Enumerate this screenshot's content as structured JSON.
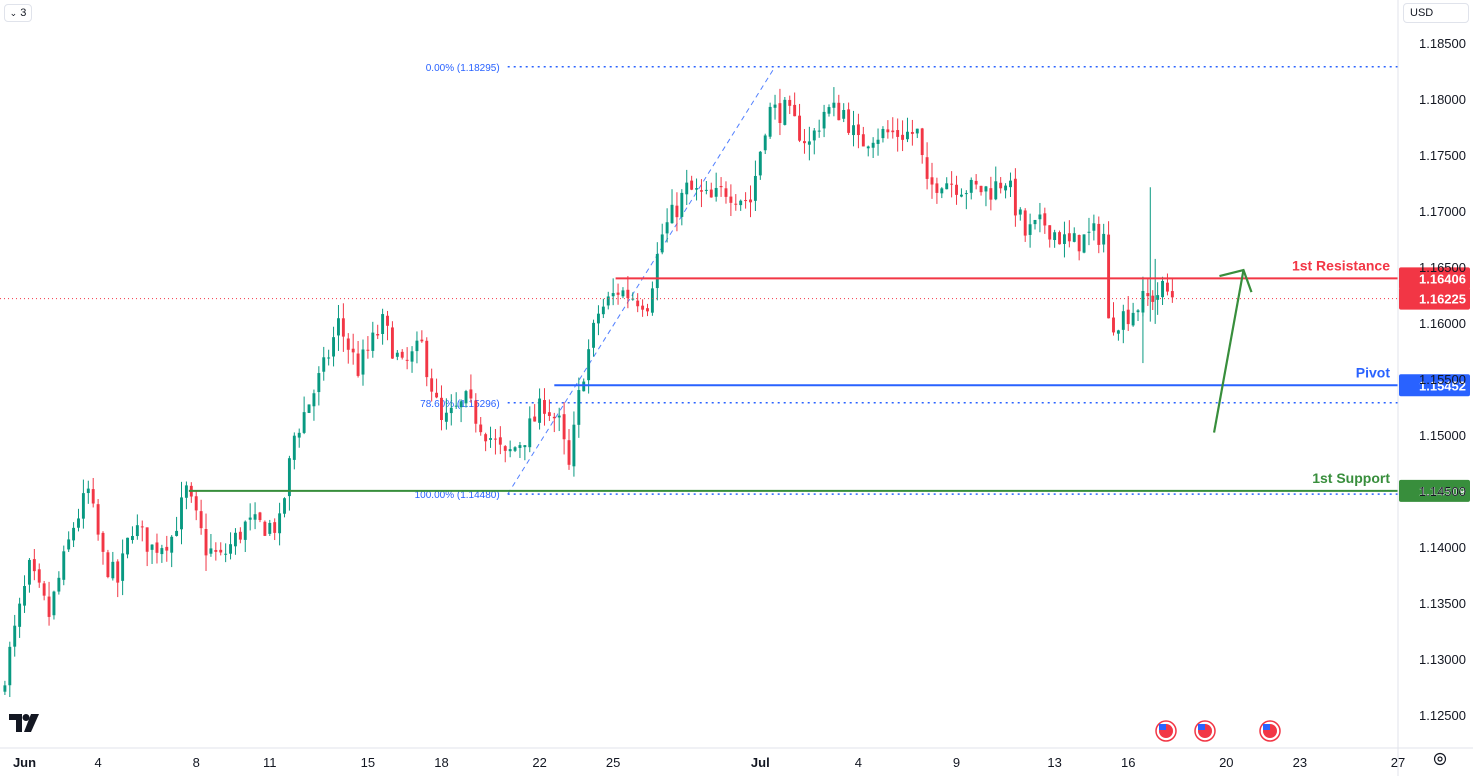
{
  "toolbar": {
    "interval_value": "3",
    "currency_label": "USD"
  },
  "colors": {
    "up": "#089981",
    "down": "#f23645",
    "resistance": "#f23645",
    "pivot": "#2962ff",
    "support": "#388e3c",
    "fib": "#2962ff",
    "arrow": "#388e3c",
    "axis_text": "#131722",
    "grid": "#f0f3fa"
  },
  "chart_data": {
    "type": "candlestick",
    "title": "",
    "y_range": [
      1.1225,
      1.1865
    ],
    "y_ticks": [
      1.185,
      1.18,
      1.175,
      1.17,
      1.165,
      1.16,
      1.155,
      1.15,
      1.145,
      1.14,
      1.135,
      1.13,
      1.125
    ],
    "y_tick_labels": [
      "1.18500",
      "1.18000",
      "1.17500",
      "1.17000",
      "1.16500",
      "1.16000",
      "1.15500",
      "1.15000",
      "1.14500",
      "1.14000",
      "1.13500",
      "1.13000",
      "1.12500"
    ],
    "x_range_days": [
      -1,
      56
    ],
    "x_ticks": [
      {
        "day": 0,
        "label": "Jun"
      },
      {
        "day": 3,
        "label": "4"
      },
      {
        "day": 7,
        "label": "8"
      },
      {
        "day": 10,
        "label": "11"
      },
      {
        "day": 14,
        "label": "15"
      },
      {
        "day": 17,
        "label": "18"
      },
      {
        "day": 21,
        "label": "22"
      },
      {
        "day": 24,
        "label": "25"
      },
      {
        "day": 30,
        "label": "Jul"
      },
      {
        "day": 34,
        "label": "4"
      },
      {
        "day": 38,
        "label": "9"
      },
      {
        "day": 42,
        "label": "13"
      },
      {
        "day": 45,
        "label": "16"
      },
      {
        "day": 49,
        "label": "20"
      },
      {
        "day": 52,
        "label": "23"
      },
      {
        "day": 56,
        "label": "27"
      }
    ],
    "levels": {
      "resistance": {
        "label": "1st Resistance",
        "value": 1.16406,
        "value_text": "1.16406",
        "start_day": 24.1
      },
      "pivot": {
        "label": "Pivot",
        "value": 1.15452,
        "value_text": "1.15452",
        "start_day": 21.6
      },
      "support": {
        "label": "1st Support",
        "value": 1.14509,
        "value_text": "1.14509",
        "start_day": 6.7
      },
      "current_price": {
        "value": 1.16225,
        "value_text": "1.16225"
      }
    },
    "fibonacci": [
      {
        "label": "0.00% (1.18295)",
        "value": 1.18295,
        "start_day": 19.7
      },
      {
        "label": "78.60% (1.15296)",
        "value": 1.15296,
        "start_day": 19.7
      },
      {
        "label": "100.00% (1.14480)",
        "value": 1.1448,
        "start_day": 19.7
      }
    ],
    "fib_trend_line": {
      "from_day": 19.7,
      "from_value": 1.1448,
      "to_day": 30.6,
      "to_value": 1.18295
    },
    "projection_arrow": {
      "from_day": 48.5,
      "from_value": 1.1503,
      "to_day": 49.7,
      "to_value": 1.1648
    },
    "anchors": [
      [
        -1,
        1.127
      ],
      [
        0.2,
        1.138
      ],
      [
        1,
        1.134
      ],
      [
        2,
        1.142
      ],
      [
        2.6,
        1.145
      ],
      [
        3.2,
        1.139
      ],
      [
        3.8,
        1.137
      ],
      [
        4.4,
        1.142
      ],
      [
        5.2,
        1.14
      ],
      [
        6,
        1.141
      ],
      [
        6.6,
        1.145
      ],
      [
        7.4,
        1.14
      ],
      [
        8,
        1.139
      ],
      [
        9,
        1.142
      ],
      [
        9.8,
        1.142
      ],
      [
        10.4,
        1.142
      ],
      [
        11,
        1.15
      ],
      [
        12.2,
        1.156
      ],
      [
        12.8,
        1.16
      ],
      [
        13.6,
        1.156
      ],
      [
        14.6,
        1.16
      ],
      [
        15.4,
        1.156
      ],
      [
        16.2,
        1.158
      ],
      [
        17,
        1.151
      ],
      [
        18,
        1.153
      ],
      [
        19.6,
        1.148
      ],
      [
        20.4,
        1.15
      ],
      [
        21.2,
        1.153
      ],
      [
        21.8,
        1.151
      ],
      [
        22.2,
        1.147
      ],
      [
        22.7,
        1.155
      ],
      [
        23.4,
        1.161
      ],
      [
        24.2,
        1.163
      ],
      [
        25.4,
        1.162
      ],
      [
        26,
        1.168
      ],
      [
        27,
        1.172
      ],
      [
        28,
        1.171
      ],
      [
        28.6,
        1.172
      ],
      [
        29.6,
        1.171
      ],
      [
        30.3,
        1.179
      ],
      [
        31,
        1.179
      ],
      [
        32,
        1.176
      ],
      [
        32.6,
        1.179
      ],
      [
        33.4,
        1.179
      ],
      [
        34,
        1.176
      ],
      [
        34.6,
        1.177
      ],
      [
        36.4,
        1.177
      ],
      [
        36.8,
        1.172
      ],
      [
        37.4,
        1.173
      ],
      [
        38.6,
        1.172
      ],
      [
        39.4,
        1.172
      ],
      [
        40,
        1.173
      ],
      [
        40.8,
        1.168
      ],
      [
        41.6,
        1.169
      ],
      [
        42.6,
        1.167
      ],
      [
        43.6,
        1.168
      ],
      [
        44,
        1.168
      ],
      [
        44.2,
        1.16
      ],
      [
        45,
        1.161
      ],
      [
        45.6,
        1.162
      ],
      [
        46.4,
        1.163
      ],
      [
        46.9,
        1.1625
      ]
    ],
    "spikes": [
      {
        "day": 45.9,
        "high": 1.1722,
        "low": 1.1602
      },
      {
        "day": 46.1,
        "high": 1.1658,
        "low": 1.16
      },
      {
        "day": 45.6,
        "high": 1.164,
        "low": 1.1565
      }
    ],
    "bars_per_day": 5
  },
  "event_icons": [
    {
      "name": "us-flag-icon"
    },
    {
      "name": "us-flag-icon"
    },
    {
      "name": "us-flag-icon"
    }
  ]
}
